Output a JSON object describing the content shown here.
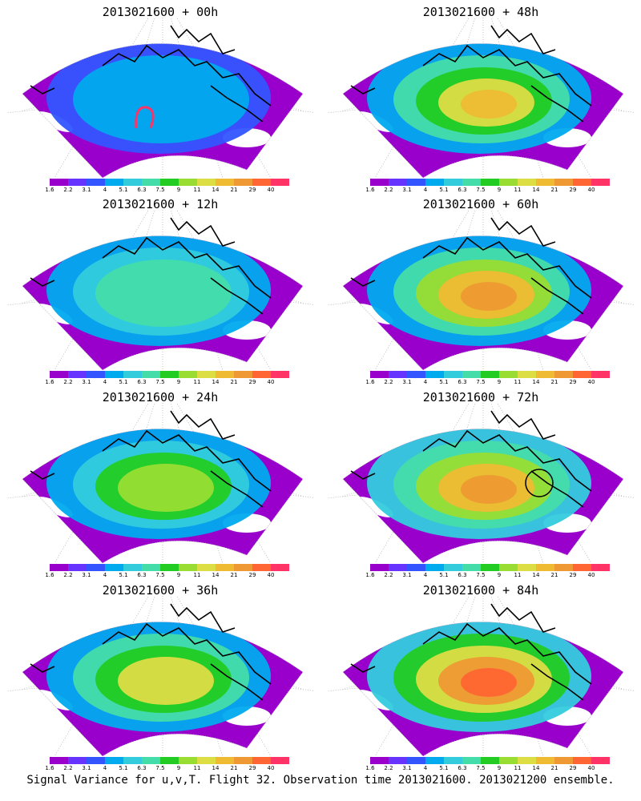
{
  "panels": [
    {
      "title": "2013021600 + 00h",
      "intensity": 0.15,
      "has_circle": false,
      "has_magenta": true
    },
    {
      "title": "2013021600 + 12h",
      "intensity": 0.3,
      "has_circle": false,
      "has_magenta": false
    },
    {
      "title": "2013021600 + 24h",
      "intensity": 0.4,
      "has_circle": false,
      "has_magenta": false
    },
    {
      "title": "2013021600 + 36h",
      "intensity": 0.5,
      "has_circle": false,
      "has_magenta": false
    },
    {
      "title": "2013021600 + 48h",
      "intensity": 0.6,
      "has_circle": false,
      "has_magenta": false
    },
    {
      "title": "2013021600 + 60h",
      "intensity": 0.7,
      "has_circle": false,
      "has_magenta": false
    },
    {
      "title": "2013021600 + 72h",
      "intensity": 0.8,
      "has_circle": true,
      "has_magenta": false
    },
    {
      "title": "2013021600 + 84h",
      "intensity": 0.9,
      "has_circle": false,
      "has_magenta": false
    }
  ],
  "colorbar": {
    "labels": [
      "1.6",
      "2.2",
      "3.1",
      "4",
      "5.1",
      "6.3",
      "7.5",
      "9",
      "11",
      "14",
      "21",
      "29",
      "40"
    ],
    "colors": [
      "#9900cc",
      "#6633ff",
      "#3355ff",
      "#00aaee",
      "#33ccdd",
      "#44ddaa",
      "#22cc22",
      "#99dd33",
      "#dddd44",
      "#eebb33",
      "#ee9933",
      "#ff6633",
      "#ff3366"
    ]
  },
  "footer": "Signal Variance for u,v,T. Flight 32. Observation time 2013021600. 2013021200 ensemble."
}
